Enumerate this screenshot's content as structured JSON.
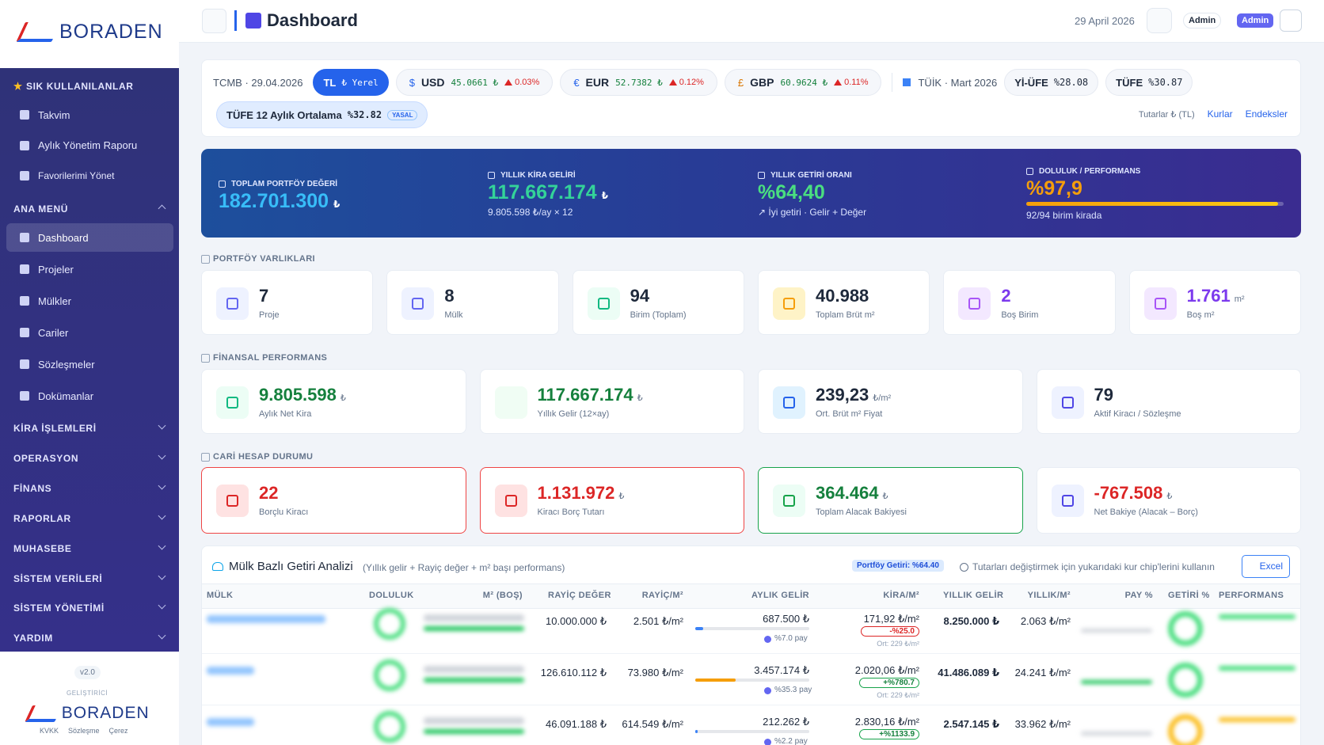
{
  "brand": "BORADEN",
  "sidebar": {
    "favorites_title": "SIK KULLANILANLAR",
    "favorites": [
      "Takvim",
      "Aylık Yönetim Raporu",
      "Favorilerimi Yönet"
    ],
    "main_title": "ANA MENÜ",
    "main": [
      "Dashboard",
      "Projeler",
      "Mülkler",
      "Cariler",
      "Sözleşmeler",
      "Dokümanlar"
    ],
    "groups": [
      "KİRA İŞLEMLERİ",
      "OPERASYON",
      "FİNANS",
      "RAPORLAR",
      "MUHASEBE",
      "SİSTEM VERİLERİ",
      "SİSTEM YÖNETİMİ",
      "YARDIM"
    ],
    "version": "v2.0",
    "developer": "GELİŞTİRİCİ",
    "footer_brand": "BORADEN",
    "footer_links": [
      "KVKK",
      "Sözleşme",
      "Çerez"
    ]
  },
  "header": {
    "title": "Dashboard",
    "date": "29 April 2026",
    "user": "Admin",
    "role": "Admin"
  },
  "rates": {
    "tcmb": "TCMB · 29.04.2026",
    "tl": "TL",
    "tl_tag": "₺ Yerel",
    "currencies": [
      {
        "symbol": "$",
        "code": "USD",
        "value": "45.0661 ₺",
        "change": "0.03%"
      },
      {
        "symbol": "€",
        "code": "EUR",
        "value": "52.7382 ₺",
        "change": "0.12%"
      },
      {
        "symbol": "£",
        "code": "GBP",
        "value": "60.9624 ₺",
        "change": "0.11%"
      }
    ],
    "tuik": "TÜİK · Mart 2026",
    "indices": [
      {
        "name": "Yİ-ÜFE",
        "value": "%28.08"
      },
      {
        "name": "TÜFE",
        "value": "%30.87"
      }
    ],
    "average": {
      "name": "TÜFE 12 Aylık Ortalama",
      "value": "%32.82",
      "tag": "YASAL"
    },
    "amounts": "Tutarlar ₺ (TL)",
    "links": [
      "Kurlar",
      "Endeksler"
    ]
  },
  "hero": [
    {
      "label": "TOPLAM PORTFÖY DEĞERİ",
      "value": "182.701.300",
      "unit": "₺"
    },
    {
      "label": "YILLIK KİRA GELİRİ",
      "value": "117.667.174",
      "unit": "₺",
      "sub": "9.805.598 ₺/ay × 12"
    },
    {
      "label": "YILLIK GETİRİ ORANI",
      "value": "%64,40",
      "sub": "↗ İyi getiri · Gelir + Değer"
    },
    {
      "label": "DOLULUK / PERFORMANS",
      "value": "%97,9",
      "progress": 97.9,
      "sub": "92/94 birim kirada"
    }
  ],
  "sections": [
    {
      "title": "PORTFÖY VARLIKLARI",
      "cards": [
        {
          "value": "7",
          "label": "Proje"
        },
        {
          "value": "8",
          "label": "Mülk"
        },
        {
          "value": "94",
          "label": "Birim (Toplam)"
        },
        {
          "value": "40.988",
          "label": "Toplam Brüt m²"
        },
        {
          "value": "2",
          "label": "Boş Birim"
        },
        {
          "value": "1.761",
          "unit": "m²",
          "label": "Boş m²"
        }
      ]
    },
    {
      "title": "FİNANSAL PERFORMANS",
      "cards": [
        {
          "value": "9.805.598",
          "unit": "₺",
          "label": "Aylık Net Kira"
        },
        {
          "value": "117.667.174",
          "unit": "₺",
          "label": "Yıllık Gelir (12×ay)"
        },
        {
          "value": "239,23",
          "unit": "₺/m²",
          "label": "Ort. Brüt m² Fiyat"
        },
        {
          "value": "79",
          "label": "Aktif Kiracı / Sözleşme"
        }
      ]
    },
    {
      "title": "CARİ HESAP DURUMU",
      "cards": [
        {
          "value": "22",
          "label": "Borçlu Kiracı"
        },
        {
          "value": "1.131.972",
          "unit": "₺",
          "label": "Kiracı Borç Tutarı"
        },
        {
          "value": "364.464",
          "unit": "₺",
          "label": "Toplam Alacak Bakiyesi"
        },
        {
          "value": "-767.508",
          "unit": "₺",
          "label": "Net Bakiye (Alacak – Borç)"
        }
      ]
    }
  ],
  "table": {
    "title": "Mülk Bazlı Getiri Analizi",
    "subtitle": "(Yıllık gelir + Rayiç değer + m² başı performans)",
    "badge": "Portföy Getiri: %64.40",
    "hint": "Tutarları değiştirmek için yukarıdaki kur chip'lerini kullanın",
    "button": "Excel",
    "columns": [
      "MÜLK",
      "DOLULUK",
      "M² (BOŞ)",
      "RAYİÇ DEĞER",
      "RAYİÇ/M²",
      "AYLIK GELİR",
      "KİRA/M²",
      "YILLIK GELİR",
      "YILLIK/M²",
      "PAY %",
      "GETİRİ %",
      "PERFORMANS"
    ],
    "rows": [
      {
        "rayic": "10.000.000 ₺",
        "rayic_m2": "2.501 ₺/m²",
        "monthly": "687.500 ₺",
        "pay": {
          "value": 7.0,
          "label": "%7.0 pay"
        },
        "kira_m2": "171,92 ₺/m²",
        "kira_diff": "-%25.0",
        "kira_avg": "Ort: 229 ₺/m²",
        "yearly": "8.250.000 ₺",
        "yearly_m2": "2.063 ₺/m²"
      },
      {
        "rayic": "126.610.112 ₺",
        "rayic_m2": "73.980 ₺/m²",
        "monthly": "3.457.174 ₺",
        "pay": {
          "value": 35.3,
          "label": "%35.3 pay"
        },
        "kira_m2": "2.020,06 ₺/m²",
        "kira_diff": "+%780.7",
        "kira_avg": "Ort: 229 ₺/m²",
        "yearly": "41.486.089 ₺",
        "yearly_m2": "24.241 ₺/m²"
      },
      {
        "rayic": "46.091.188 ₺",
        "rayic_m2": "614.549 ₺/m²",
        "monthly": "212.262 ₺",
        "pay": {
          "value": 2.2,
          "label": "%2.2 pay"
        },
        "kira_m2": "2.830,16 ₺/m²",
        "kira_diff": "+%1133.9",
        "yearly": "2.547.145 ₺",
        "yearly_m2": "33.962 ₺/m²"
      }
    ]
  }
}
